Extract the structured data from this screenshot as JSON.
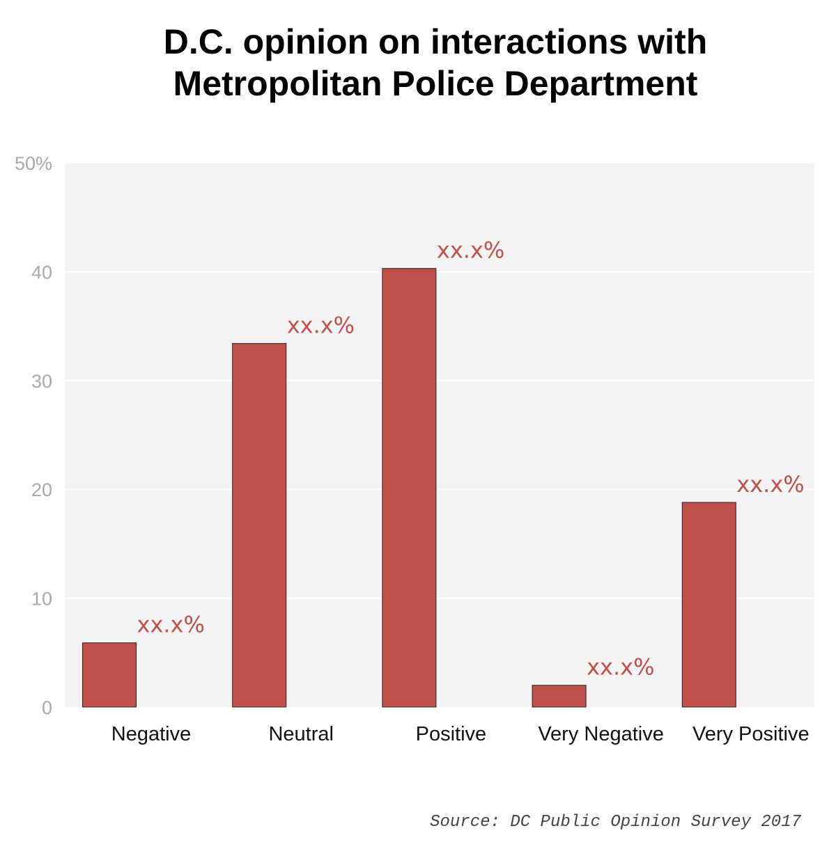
{
  "chart_data": {
    "type": "bar",
    "title_lines": [
      "D.C. opinion on interactions with",
      "Metropolitan Police Department"
    ],
    "categories": [
      "Negative",
      "Neutral",
      "Positive",
      "Very Negative",
      "Very Positive"
    ],
    "values": [
      5.9,
      33.4,
      40.3,
      2.0,
      18.8
    ],
    "data_labels": [
      "xx.x%",
      "xx.x%",
      "xx.x%",
      "xx.x%",
      "xx.x%"
    ],
    "y_ticks": [
      0,
      10,
      20,
      30,
      40,
      50
    ],
    "y_tick_labels": [
      "0",
      "10",
      "20",
      "30",
      "40",
      "50%"
    ],
    "ylim": [
      0,
      50
    ],
    "grid": true,
    "colors": {
      "bar": "#c0504a",
      "bar_outline": "#222222",
      "panel": "#f3f3f3",
      "gridline": "#ffffff",
      "data_label": "#c0504a"
    },
    "source": "Source: DC Public Opinion Survey 2017"
  }
}
